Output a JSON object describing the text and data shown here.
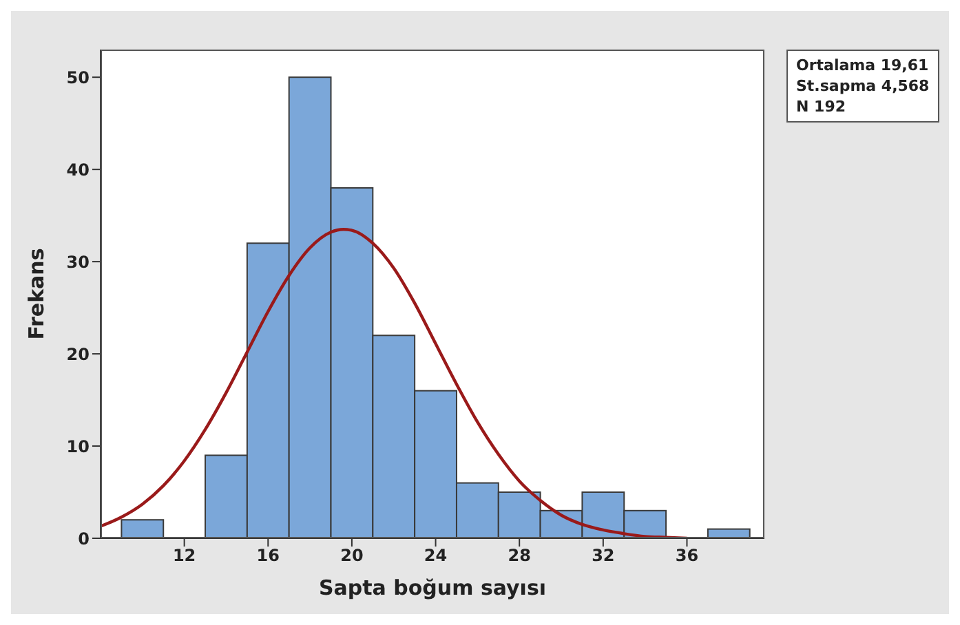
{
  "chart_data": {
    "type": "histogram",
    "xlabel": "Sapta boğum sayısı",
    "ylabel": "Frekans",
    "series": [
      {
        "color": "#7ba7d9",
        "bins": [
          9,
          11,
          13,
          15,
          17,
          19,
          21,
          23,
          25,
          27,
          29,
          31,
          33,
          35,
          37,
          39
        ],
        "values": [
          2,
          0,
          9,
          32,
          50,
          38,
          22,
          16,
          6,
          5,
          3,
          5,
          3,
          0,
          1
        ]
      },
      {
        "type": "line",
        "color": "#9a1a1a",
        "x": [
          8,
          9,
          10,
          11,
          12,
          13,
          14,
          15,
          16,
          17,
          18,
          19,
          19.6,
          20,
          21,
          22,
          23,
          24,
          25,
          26,
          27,
          28,
          29,
          30,
          31,
          32,
          33,
          34,
          35,
          36
        ],
        "values": [
          1.3,
          2.3,
          3.7,
          5.7,
          8.4,
          11.8,
          15.8,
          20.2,
          24.6,
          28.5,
          31.5,
          33.2,
          33.5,
          33.4,
          32.0,
          29.3,
          25.5,
          21.1,
          16.7,
          12.6,
          9.1,
          6.2,
          4.1,
          2.5,
          1.5,
          0.9,
          0.5,
          0.2,
          0.1,
          0
        ]
      }
    ],
    "xlim": [
      8,
      39.7
    ],
    "xticks": [
      12,
      16,
      20,
      24,
      28,
      32,
      36
    ],
    "ylim": [
      0,
      53
    ],
    "yticks": [
      0,
      10,
      20,
      30,
      40,
      50
    ],
    "annotations": [
      "Ortalama 19,61",
      "St.sapma 4,568",
      "N 192"
    ]
  }
}
